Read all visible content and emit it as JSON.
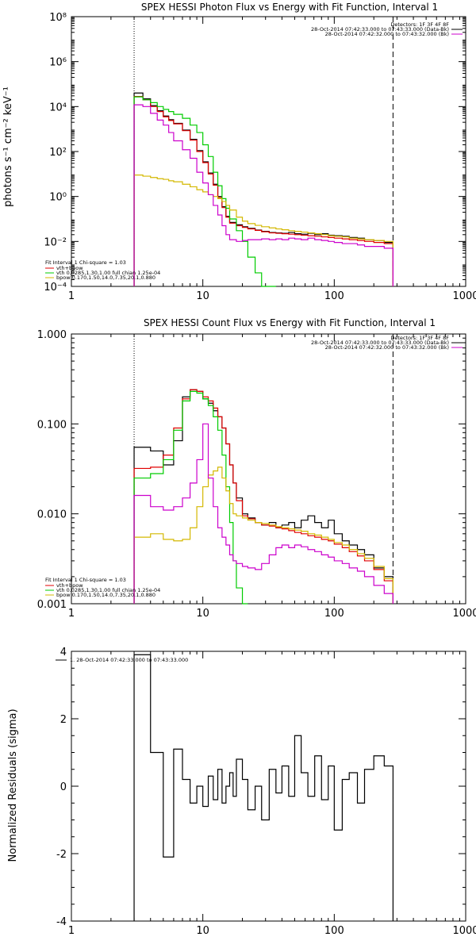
{
  "colors": {
    "data": "#000000",
    "total": "#e00000",
    "vth": "#00cc00",
    "bpow": "#d4b800",
    "residual": "#cc00cc"
  },
  "chart_data": [
    {
      "type": "line",
      "title": "SPEX HESSI Photon Flux vs Energy with Fit Function, Interval 1",
      "xlabel": "",
      "ylabel": "photons s⁻¹ cm⁻² keV⁻¹",
      "xscale": "log",
      "yscale": "log",
      "xlim": [
        1,
        1000
      ],
      "ylim": [
        0.0001,
        100000000
      ],
      "x_ticks": [
        "1",
        "10",
        "100",
        "1000"
      ],
      "y_ticks": [
        "10⁻⁴",
        "10⁻²",
        "10⁰",
        "10²",
        "10⁴",
        "10⁶",
        "10⁸"
      ],
      "fit_range_keV": [
        3,
        280
      ],
      "legend_top_right": [
        "Detectors: 1F 3F 4F 8F",
        "28-Oct-2014 07:42:33.000 to 07:43:33.000 (Data-Bk)",
        "28-Oct-2014 07:42:32.000 to 07:43:32.000 (Bk)"
      ],
      "legend_bottom_left": [
        "Fit Interval 1    Chi-square = 1.03",
        "vth+bpow",
        "vth 0.0285,1.30,1.00  full chian 1.25e-04",
        "bpow 0.170,1.50,14.0,7.35,20.1,0.880"
      ],
      "edges": [
        3.0,
        3.5,
        4.0,
        4.5,
        5.0,
        5.5,
        6.0,
        7.0,
        8.0,
        9.0,
        10.0,
        11.0,
        12.0,
        13.0,
        14.0,
        15.0,
        16.0,
        18.0,
        20.0,
        22.0,
        25.0,
        28.0,
        32.0,
        36.0,
        40.0,
        45.0,
        50.0,
        56.0,
        63.0,
        71.0,
        80.0,
        90.0,
        100.0,
        115.0,
        130.0,
        150.0,
        170.0,
        200.0,
        240.0,
        280.0
      ],
      "series": [
        {
          "name": "data-bk",
          "color": "#000000",
          "values": [
            40000,
            22000,
            11000,
            6500,
            3800,
            2600,
            1800,
            900,
            350,
            110,
            35,
            11,
            3.5,
            1.0,
            0.35,
            0.13,
            0.07,
            0.055,
            0.045,
            0.038,
            0.032,
            0.028,
            0.025,
            0.024,
            0.023,
            0.025,
            0.022,
            0.021,
            0.023,
            0.02,
            0.022,
            0.019,
            0.018,
            0.017,
            0.015,
            0.014,
            0.012,
            0.011,
            0.009
          ]
        },
        {
          "name": "vth+bpow",
          "color": "#e00000",
          "values": [
            28000,
            20000,
            10000,
            6000,
            3500,
            2400,
            1700,
            850,
            320,
            100,
            32,
            10,
            3.2,
            0.9,
            0.32,
            0.12,
            0.065,
            0.05,
            0.042,
            0.036,
            0.031,
            0.027,
            0.024,
            0.023,
            0.022,
            0.021,
            0.02,
            0.019,
            0.018,
            0.017,
            0.016,
            0.015,
            0.014,
            0.013,
            0.012,
            0.011,
            0.01,
            0.009,
            0.008
          ]
        },
        {
          "name": "vth",
          "color": "#00cc00",
          "values": [
            27000,
            20000,
            15000,
            10000,
            7500,
            6000,
            4500,
            3000,
            1500,
            700,
            200,
            60,
            12,
            3.0,
            0.8,
            0.3,
            0.1,
            0.03,
            0.01,
            0.002,
            0.0004,
            8e-05,
            1e-05
          ]
        },
        {
          "name": "bpow",
          "color": "#d4b800",
          "values": [
            9.0,
            8.0,
            7.0,
            6.2,
            5.8,
            5.0,
            4.5,
            3.5,
            2.7,
            2.0,
            1.6,
            1.2,
            1.0,
            0.8,
            0.6,
            0.4,
            0.25,
            0.12,
            0.08,
            0.062,
            0.052,
            0.045,
            0.04,
            0.036,
            0.033,
            0.03,
            0.028,
            0.026,
            0.024,
            0.022,
            0.02,
            0.018,
            0.017,
            0.016,
            0.014,
            0.013,
            0.012,
            0.011,
            0.01
          ]
        },
        {
          "name": "bk",
          "color": "#cc00cc",
          "values": [
            12000,
            10000,
            5000,
            2500,
            1500,
            700,
            300,
            120,
            50,
            12,
            4.0,
            1.2,
            0.4,
            0.15,
            0.05,
            0.02,
            0.012,
            0.01,
            0.011,
            0.012,
            0.012,
            0.013,
            0.012,
            0.013,
            0.012,
            0.014,
            0.013,
            0.012,
            0.014,
            0.012,
            0.011,
            0.01,
            0.009,
            0.008,
            0.008,
            0.007,
            0.006,
            0.006,
            0.005
          ]
        }
      ]
    },
    {
      "type": "line",
      "title": "SPEX HESSI Count Flux vs Energy with Fit Function, Interval 1",
      "xlabel": "",
      "ylabel": "",
      "xscale": "log",
      "yscale": "log",
      "xlim": [
        1,
        1000
      ],
      "ylim": [
        0.001,
        1.0
      ],
      "x_ticks": [
        "1",
        "10",
        "100",
        "1000"
      ],
      "y_ticks": [
        "0.001",
        "0.010",
        "0.100",
        "1.000"
      ],
      "fit_range_keV": [
        3,
        280
      ],
      "legend_top_right": [
        "Detectors: 1F 3F 4F 8F",
        "28-Oct-2014 07:42:33.000 to 07:43:33.000 (Data-Bk)",
        "28-Oct-2014 07:42:32.000 to 07:43:32.000 (Bk)"
      ],
      "legend_bottom_left": [
        "Fit Interval 1    Chi-square = 1.03",
        "vth+bpow",
        "vth 0.0285,1.30,1.00  full chian 1.25e-04",
        "bpow 0.170,1.50,14.0,7.35,20.1,0.880"
      ],
      "edges": [
        3.0,
        4.0,
        5.0,
        6.0,
        7.0,
        8.0,
        9.0,
        10.0,
        11.0,
        12.0,
        13.0,
        14.0,
        15.0,
        16.0,
        17.0,
        18.0,
        20.0,
        22.0,
        25.0,
        28.0,
        32.0,
        36.0,
        40.0,
        45.0,
        50.0,
        56.0,
        63.0,
        71.0,
        80.0,
        90.0,
        100.0,
        115.0,
        130.0,
        150.0,
        170.0,
        200.0,
        240.0,
        280.0
      ],
      "series": [
        {
          "name": "data-bk",
          "color": "#000000",
          "values": [
            0.055,
            0.05,
            0.035,
            0.065,
            0.2,
            0.24,
            0.23,
            0.19,
            0.17,
            0.14,
            0.12,
            0.09,
            0.06,
            0.035,
            0.022,
            0.015,
            0.01,
            0.009,
            0.008,
            0.0075,
            0.008,
            0.007,
            0.0075,
            0.008,
            0.007,
            0.0085,
            0.0095,
            0.008,
            0.007,
            0.0085,
            0.006,
            0.005,
            0.0045,
            0.004,
            0.0035,
            0.0025,
            0.002
          ]
        },
        {
          "name": "vth+bpow",
          "color": "#e00000",
          "values": [
            0.032,
            0.033,
            0.045,
            0.09,
            0.19,
            0.24,
            0.23,
            0.2,
            0.18,
            0.15,
            0.12,
            0.09,
            0.06,
            0.035,
            0.022,
            0.014,
            0.0095,
            0.0088,
            0.008,
            0.0075,
            0.0073,
            0.007,
            0.0068,
            0.0065,
            0.0062,
            0.006,
            0.0057,
            0.0055,
            0.0052,
            0.005,
            0.0046,
            0.0042,
            0.0038,
            0.0034,
            0.003,
            0.0024,
            0.0018
          ]
        },
        {
          "name": "vth",
          "color": "#00cc00",
          "values": [
            0.025,
            0.028,
            0.04,
            0.085,
            0.18,
            0.23,
            0.22,
            0.19,
            0.16,
            0.12,
            0.085,
            0.045,
            0.02,
            0.008,
            0.003,
            0.0015,
            0.0004
          ]
        },
        {
          "name": "bpow",
          "color": "#d4b800",
          "values": [
            0.0055,
            0.006,
            0.0052,
            0.005,
            0.0052,
            0.007,
            0.012,
            0.02,
            0.027,
            0.03,
            0.033,
            0.025,
            0.018,
            0.013,
            0.01,
            0.0095,
            0.009,
            0.0085,
            0.008,
            0.0078,
            0.0075,
            0.0072,
            0.007,
            0.0068,
            0.0066,
            0.0064,
            0.006,
            0.0058,
            0.0055,
            0.0052,
            0.0048,
            0.0045,
            0.004,
            0.0036,
            0.0032,
            0.0026,
            0.0019
          ]
        },
        {
          "name": "bk",
          "color": "#cc00cc",
          "values": [
            0.016,
            0.012,
            0.011,
            0.012,
            0.015,
            0.022,
            0.04,
            0.1,
            0.025,
            0.012,
            0.007,
            0.0055,
            0.0045,
            0.0035,
            0.003,
            0.0028,
            0.0026,
            0.0025,
            0.0024,
            0.0028,
            0.0035,
            0.0042,
            0.0045,
            0.0042,
            0.0045,
            0.0043,
            0.004,
            0.0038,
            0.0035,
            0.0033,
            0.003,
            0.0028,
            0.0025,
            0.0023,
            0.002,
            0.0016,
            0.0013
          ]
        }
      ]
    },
    {
      "type": "line",
      "title": "",
      "xlabel": "",
      "ylabel": "Normalized Residuals (sigma)",
      "xscale": "log",
      "yscale": "linear",
      "xlim": [
        1,
        1000
      ],
      "ylim": [
        -4,
        4
      ],
      "x_ticks": [
        "1",
        "10",
        "100",
        "1000"
      ],
      "y_ticks": [
        "-4",
        "-2",
        "0",
        "2",
        "4"
      ],
      "legend": [
        "1. 28-Oct-2014 07:42:33.000 to 07:43:33.000"
      ],
      "edges": [
        3.0,
        4.0,
        5.0,
        6.0,
        7.0,
        8.0,
        9.0,
        10.0,
        11.0,
        12.0,
        13.0,
        14.0,
        15.0,
        16.0,
        17.0,
        18.0,
        20.0,
        22.0,
        25.0,
        28.0,
        32.0,
        36.0,
        40.0,
        45.0,
        50.0,
        56.0,
        63.0,
        71.0,
        80.0,
        90.0,
        100.0,
        115.0,
        130.0,
        150.0,
        170.0,
        200.0,
        240.0,
        280.0
      ],
      "series": [
        {
          "name": "residuals",
          "color": "#000000",
          "values": [
            3.9,
            1.0,
            -2.1,
            1.1,
            0.2,
            -0.5,
            0.0,
            -0.6,
            0.3,
            -0.4,
            0.5,
            -0.5,
            0.0,
            0.4,
            -0.3,
            0.8,
            0.2,
            -0.7,
            0.0,
            -1.0,
            0.5,
            -0.2,
            0.6,
            -0.3,
            1.5,
            0.4,
            -0.3,
            0.9,
            -0.4,
            0.6,
            -1.3,
            0.2,
            0.4,
            -0.5,
            0.5,
            0.9,
            0.6
          ]
        }
      ]
    }
  ]
}
